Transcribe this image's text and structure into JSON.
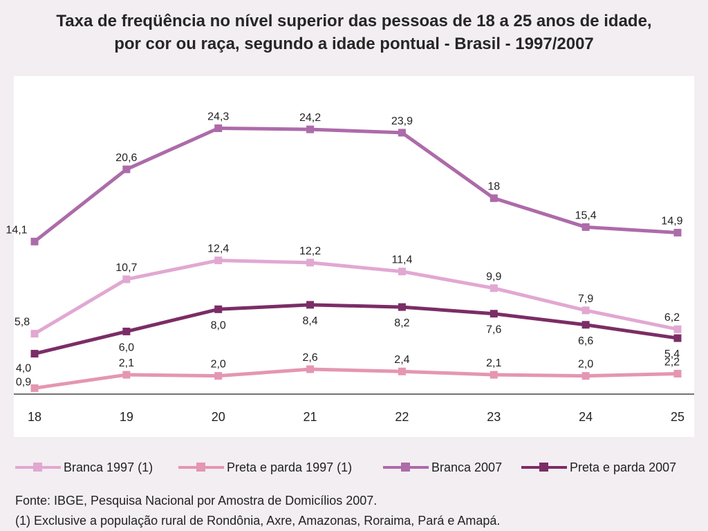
{
  "title": {
    "line1": "Taxa de freqüência no nível superior das pessoas de 18 a 25 anos de idade,",
    "line2": "por cor ou raça, segundo a idade pontual - Brasil - 1997/2007"
  },
  "chart_data": {
    "type": "line",
    "title": "Taxa de freqüência no nível superior das pessoas de 18 a 25 anos de idade, por cor ou raça, segundo a idade pontual - Brasil - 1997/2007",
    "xlabel": "",
    "ylabel": "",
    "x": [
      18,
      19,
      20,
      21,
      22,
      23,
      24,
      25
    ],
    "x_labels": [
      "18",
      "19",
      "20",
      "21",
      "22",
      "23",
      "24",
      "25"
    ],
    "ylim": [
      -3.5,
      29
    ],
    "grid": false,
    "legend_position": "bottom",
    "series": [
      {
        "name": "Branca 1997 (1)",
        "color": "#e1a8d2",
        "values": [
          5.8,
          10.7,
          12.4,
          12.2,
          11.4,
          9.9,
          7.9,
          6.2
        ],
        "labels": [
          "5,8",
          "10,7",
          "12,4",
          "12,2",
          "11,4",
          "9,9",
          "7,9",
          "6,2"
        ]
      },
      {
        "name": "Preta e parda 1997 (1)",
        "color": "#e496b2",
        "values": [
          0.9,
          2.1,
          2.0,
          2.6,
          2.4,
          2.1,
          2.0,
          2.2
        ],
        "labels": [
          "0,9",
          "2,1",
          "2,0",
          "2,6",
          "2,4",
          "2,1",
          "2,0",
          "2,2"
        ]
      },
      {
        "name": "Branca 2007",
        "color": "#ad6ba9",
        "values": [
          14.1,
          20.6,
          24.3,
          24.2,
          23.9,
          18,
          15.4,
          14.9
        ],
        "labels": [
          "14,1",
          "20,6",
          "24,3",
          "24,2",
          "23,9",
          "18",
          "15,4",
          "14,9"
        ]
      },
      {
        "name": "Preta e parda 2007",
        "color": "#7b2d66",
        "values": [
          4.0,
          6.0,
          8.0,
          8.4,
          8.2,
          7.6,
          6.6,
          5.4
        ],
        "labels": [
          "4,0",
          "6,0",
          "8,0",
          "8,4",
          "8,2",
          "7,6",
          "6,6",
          "5,4"
        ]
      }
    ]
  },
  "notes": {
    "source": "Fonte: IBGE, Pesquisa Nacional por Amostra de Domicílios 2007.",
    "footnote": "(1) Exclusive a população rural de Rondônia, Axre, Amazonas, Roraima, Pará e Amapá."
  }
}
